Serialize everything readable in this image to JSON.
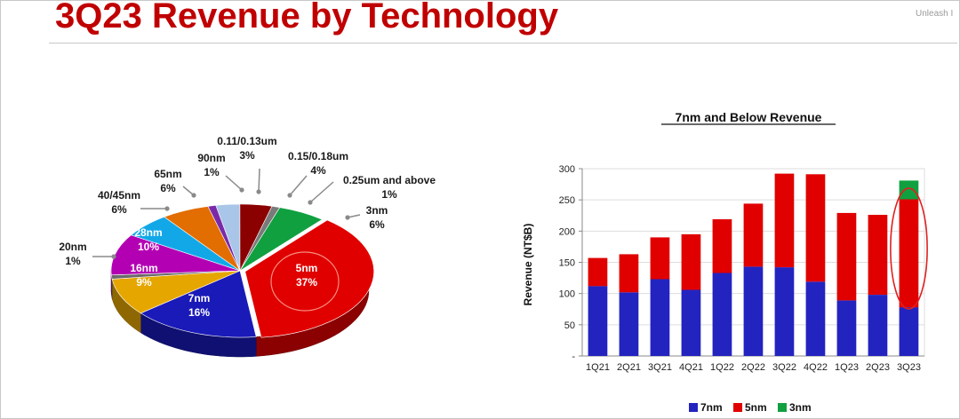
{
  "slide": {
    "title": "3Q23 Revenue by Technology",
    "brand": "Unleash Innovation"
  },
  "chart_data": [
    {
      "type": "pie",
      "title": "",
      "slices": [
        {
          "label": "5nm",
          "pct_label": "37%",
          "value": 37,
          "color": "#e00000"
        },
        {
          "label": "7nm",
          "pct_label": "16%",
          "value": 16,
          "color": "#1a1ab8"
        },
        {
          "label": "16nm",
          "pct_label": "9%",
          "value": 9,
          "color": "#e6a600"
        },
        {
          "label": "20nm",
          "pct_label": "1%",
          "value": 1,
          "color": "#6a6a6a"
        },
        {
          "label": "28nm",
          "pct_label": "10%",
          "value": 10,
          "color": "#b300b3"
        },
        {
          "label": "40/45nm",
          "pct_label": "6%",
          "value": 6,
          "color": "#12a8e8"
        },
        {
          "label": "65nm",
          "pct_label": "6%",
          "value": 6,
          "color": "#e26d00"
        },
        {
          "label": "90nm",
          "pct_label": "1%",
          "value": 1,
          "color": "#7a2aa8"
        },
        {
          "label": "0.11/0.13um",
          "pct_label": "3%",
          "value": 3,
          "color": "#a9c6e8"
        },
        {
          "label": "0.15/0.18um",
          "pct_label": "4%",
          "value": 4,
          "color": "#8b0000"
        },
        {
          "label": "0.25um and above",
          "pct_label": "1%",
          "value": 1,
          "color": "#7a7a7a"
        },
        {
          "label": "3nm",
          "pct_label": "6%",
          "value": 6,
          "color": "#10a040"
        }
      ]
    },
    {
      "type": "bar",
      "stacked": true,
      "title": "7nm and Below Revenue",
      "ylabel": "Revenue (NT$B)",
      "ylim": [
        0,
        300
      ],
      "yticks": [
        "-",
        "50",
        "100",
        "150",
        "200",
        "250",
        "300"
      ],
      "categories": [
        "1Q21",
        "2Q21",
        "3Q21",
        "4Q21",
        "1Q22",
        "2Q22",
        "3Q22",
        "4Q22",
        "1Q23",
        "2Q23",
        "3Q23"
      ],
      "series": [
        {
          "name": "7nm",
          "color": "#2323c0",
          "values": [
            112,
            102,
            123,
            106,
            133,
            143,
            142,
            119,
            89,
            98,
            78
          ]
        },
        {
          "name": "5nm",
          "color": "#e00000",
          "values": [
            45,
            61,
            67,
            89,
            86,
            101,
            150,
            172,
            140,
            128,
            173
          ]
        },
        {
          "name": "3nm",
          "color": "#10a040",
          "values": [
            0,
            0,
            0,
            0,
            0,
            0,
            0,
            0,
            0,
            0,
            30
          ]
        }
      ],
      "legend": "bottom",
      "highlight_category": "3Q23"
    }
  ]
}
